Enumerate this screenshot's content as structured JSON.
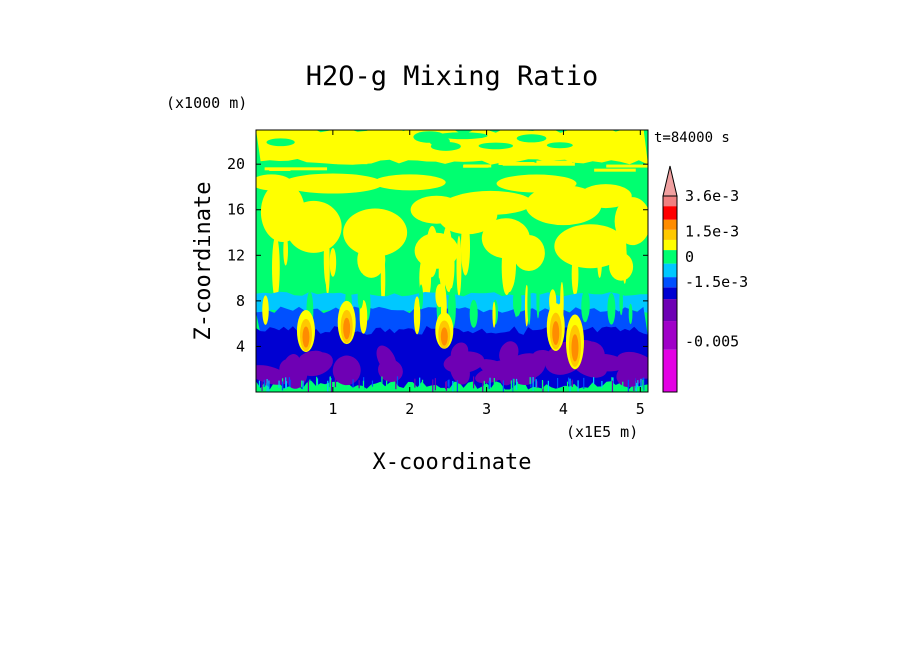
{
  "chart_data": {
    "type": "heatmap",
    "title": "H2O-g Mixing Ratio",
    "xlabel": "X-coordinate",
    "ylabel": "Z-coordinate",
    "x_unit": "(x1E5 m)",
    "y_unit": "(x1000 m)",
    "time_label": "t=84000 s",
    "xlim": [
      0,
      5.1
    ],
    "ylim": [
      0,
      23
    ],
    "x_ticks": [
      1,
      2,
      3,
      4,
      5
    ],
    "y_ticks": [
      4,
      8,
      12,
      16,
      20
    ],
    "colorbar": {
      "labels": [
        {
          "text": "3.6e-3",
          "level": 0.0036
        },
        {
          "text": "1.5e-3",
          "level": 0.0015
        },
        {
          "text": "0",
          "level": 0
        },
        {
          "text": "-1.5e-3",
          "level": -0.0015
        },
        {
          "text": "-0.005",
          "level": -0.005
        }
      ],
      "bands": [
        {
          "color": "#e400e4",
          "from": -0.008,
          "to": -0.0055
        },
        {
          "color": "#a000c8",
          "from": -0.0055,
          "to": -0.0038
        },
        {
          "color": "#6e00b4",
          "from": -0.0038,
          "to": -0.0025
        },
        {
          "color": "#0000d2",
          "from": -0.0025,
          "to": -0.0018
        },
        {
          "color": "#0050ff",
          "from": -0.0018,
          "to": -0.0012
        },
        {
          "color": "#00c8ff",
          "from": -0.0012,
          "to": -0.0004
        },
        {
          "color": "#00ff70",
          "from": -0.0004,
          "to": 0.0004
        },
        {
          "color": "#ffff00",
          "from": 0.0004,
          "to": 0.001
        },
        {
          "color": "#ffc800",
          "from": 0.001,
          "to": 0.0016
        },
        {
          "color": "#ff8c00",
          "from": 0.0016,
          "to": 0.0022
        },
        {
          "color": "#ff0000",
          "from": 0.0022,
          "to": 0.003
        },
        {
          "color": "#f08080",
          "from": 0.003,
          "to": 0.0036
        },
        {
          "color": "#f0a0a0",
          "from": 0.0036,
          "to": 0.0042
        }
      ]
    },
    "regions": {
      "background": "#00ff70",
      "top_band": {
        "color": "#ffff00",
        "z_from": 20.2,
        "z_to": 23
      },
      "upper_clouds": {
        "color": "#ffff00",
        "z_from": 9.5,
        "z_to": 19.5
      },
      "cyan_layer": {
        "color": "#00c8ff",
        "z_from": 7.0,
        "z_to": 8.6
      },
      "blue_layer": {
        "color": "#0050ff",
        "z_from": 4.8,
        "z_to": 7.2
      },
      "navy_layer": {
        "color": "#0000d2",
        "z_from": 0.6,
        "z_to": 5.4
      },
      "purple_cells": {
        "color": "#6e00b4",
        "z_from": 0.8,
        "z_to": 4.4
      },
      "plumes": [
        {
          "x": 0.65,
          "z_from": 3.5,
          "z_to": 7.2
        },
        {
          "x": 1.18,
          "z_from": 4.2,
          "z_to": 8.0
        },
        {
          "x": 2.45,
          "z_from": 3.8,
          "z_to": 7.0
        },
        {
          "x": 3.9,
          "z_from": 3.6,
          "z_to": 7.8
        },
        {
          "x": 4.15,
          "z_from": 2.0,
          "z_to": 6.8
        }
      ]
    }
  }
}
